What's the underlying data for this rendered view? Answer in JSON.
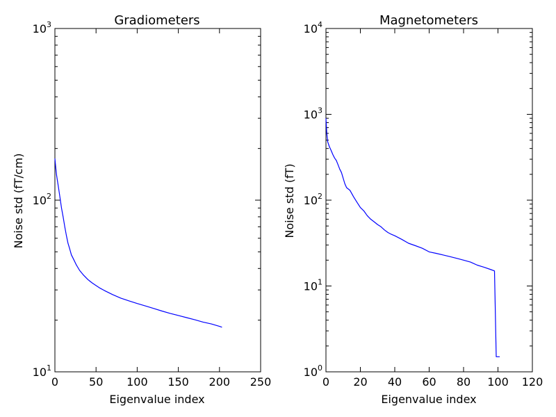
{
  "chart_data": [
    {
      "type": "line",
      "title": "Gradiometers",
      "xlabel": "Eigenvalue index",
      "ylabel": "Noise std (fT/cm)",
      "xlim": [
        0,
        250
      ],
      "ylim": [
        10,
        1000
      ],
      "yscale": "log",
      "grid": false,
      "color": "#0000ff",
      "xticks": [
        "0",
        "50",
        "100",
        "150",
        "200",
        "250"
      ],
      "yticks": [
        {
          "base": "10",
          "exp": "1"
        },
        {
          "base": "10",
          "exp": "2"
        },
        {
          "base": "10",
          "exp": "3"
        }
      ],
      "series": [
        {
          "x": [
            0,
            1,
            2,
            3,
            4,
            6,
            8,
            10,
            12,
            14,
            16,
            18,
            20,
            23,
            26,
            30,
            35,
            40,
            45,
            50,
            55,
            60,
            70,
            80,
            90,
            100,
            110,
            120,
            130,
            140,
            150,
            160,
            170,
            180,
            190,
            200,
            203
          ],
          "y": [
            175,
            155,
            140,
            130,
            122,
            105,
            90,
            80,
            70,
            62,
            56,
            52,
            48,
            45,
            42,
            39,
            36.5,
            34.5,
            33,
            31.8,
            30.7,
            29.8,
            28.2,
            26.9,
            25.9,
            25.0,
            24.2,
            23.4,
            22.6,
            21.9,
            21.3,
            20.7,
            20.1,
            19.5,
            19.0,
            18.4,
            18.2
          ]
        }
      ]
    },
    {
      "type": "line",
      "title": "Magnetometers",
      "xlabel": "Eigenvalue index",
      "ylabel": "Noise std (fT)",
      "xlim": [
        0,
        120
      ],
      "ylim": [
        1,
        10000
      ],
      "yscale": "log",
      "grid": false,
      "color": "#0000ff",
      "xticks": [
        "0",
        "20",
        "40",
        "60",
        "80",
        "100",
        "120"
      ],
      "yticks": [
        {
          "base": "10",
          "exp": "0"
        },
        {
          "base": "10",
          "exp": "1"
        },
        {
          "base": "10",
          "exp": "2"
        },
        {
          "base": "10",
          "exp": "3"
        },
        {
          "base": "10",
          "exp": "4"
        }
      ],
      "series": [
        {
          "x": [
            0,
            0.5,
            1,
            2,
            3,
            4,
            5,
            6,
            7,
            8,
            9,
            10,
            11,
            12,
            14,
            16,
            18,
            20,
            22,
            24,
            26,
            28,
            30,
            32,
            34,
            36,
            38,
            40,
            44,
            48,
            52,
            56,
            60,
            64,
            68,
            72,
            76,
            80,
            84,
            88,
            92,
            96,
            98,
            99,
            100,
            101
          ],
          "y": [
            900,
            600,
            480,
            420,
            380,
            340,
            310,
            290,
            260,
            230,
            210,
            180,
            155,
            140,
            130,
            110,
            95,
            82,
            75,
            66,
            60,
            56,
            52,
            49,
            45,
            42,
            40,
            38.5,
            35,
            31.5,
            29.5,
            27.5,
            25,
            24,
            23,
            22,
            21,
            20,
            19,
            17.5,
            16.5,
            15.5,
            15,
            1.5,
            1.5,
            1.5
          ]
        }
      ]
    }
  ]
}
